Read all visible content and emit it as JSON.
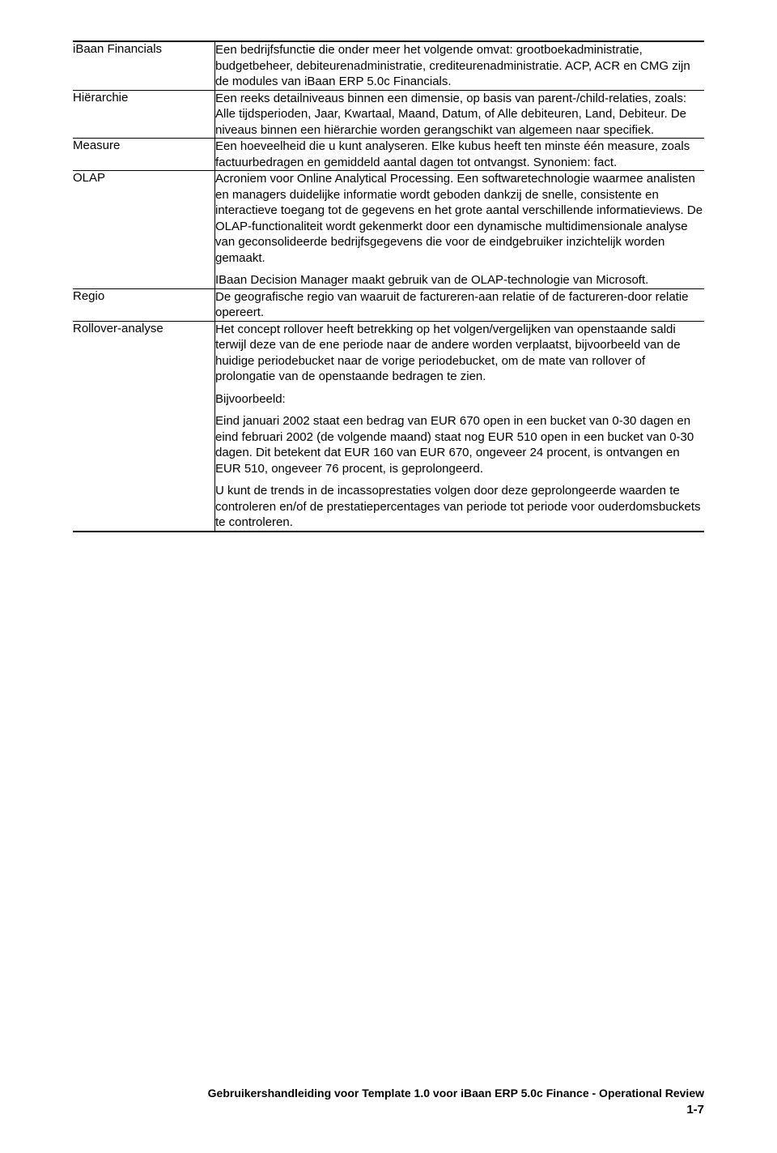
{
  "glossary": [
    {
      "term": "iBaan Financials",
      "paragraphs": [
        "Een bedrijfsfunctie die onder meer het volgende omvat: grootboekadministratie, budgetbeheer, debiteurenadministratie, crediteurenadministratie. ACP, ACR en CMG zijn de modules van iBaan ERP 5.0c Financials."
      ]
    },
    {
      "term": "Hiërarchie",
      "paragraphs": [
        "Een reeks detailniveaus binnen een dimensie, op basis van parent-/child-relaties, zoals: Alle tijdsperioden, Jaar, Kwartaal, Maand, Datum, of Alle debiteuren, Land, Debiteur. De niveaus binnen een hiërarchie worden gerangschikt van algemeen naar specifiek."
      ]
    },
    {
      "term": "Measure",
      "paragraphs": [
        "Een hoeveelheid die u kunt analyseren. Elke kubus heeft ten minste één measure, zoals factuurbedragen en gemiddeld aantal dagen tot ontvangst. Synoniem: fact."
      ]
    },
    {
      "term": "OLAP",
      "paragraphs": [
        "Acroniem voor Online Analytical Processing. Een softwaretechnologie waarmee analisten en managers duidelijke informatie wordt geboden dankzij de snelle, consistente en interactieve toegang tot de gegevens en het grote aantal verschillende informatieviews. De OLAP-functionaliteit wordt gekenmerkt door een dynamische multidimensionale analyse van geconsolideerde bedrijfsgegevens die voor de eindgebruiker inzichtelijk worden gemaakt.",
        "IBaan Decision Manager maakt gebruik van de OLAP-technologie van Microsoft."
      ]
    },
    {
      "term": "Regio",
      "paragraphs": [
        "De geografische regio van waaruit de factureren-aan relatie of de factureren-door relatie opereert."
      ]
    },
    {
      "term": "Rollover-analyse",
      "paragraphs": [
        "Het concept rollover heeft betrekking op het volgen/vergelijken van openstaande saldi terwijl deze van de ene periode naar de andere worden verplaatst, bijvoorbeeld van de huidige periodebucket naar de vorige periodebucket, om de mate van rollover of prolongatie van de openstaande bedragen te zien.",
        "Bijvoorbeeld:",
        "Eind januari 2002 staat een bedrag van EUR 670 open in een bucket van 0-30 dagen en eind februari 2002 (de volgende maand) staat nog EUR 510 open in een bucket van 0-30 dagen. Dit betekent dat EUR 160 van EUR 670, ongeveer 24 procent, is ontvangen en EUR 510, ongeveer 76 procent, is geprolongeerd.",
        "U kunt de trends in de incassoprestaties volgen door deze geprolongeerde waarden te controleren en/of de prestatiepercentages van periode tot periode voor ouderdomsbuckets te controleren."
      ]
    }
  ],
  "footer": {
    "title": "Gebruikershandleiding voor Template 1.0 voor iBaan ERP 5.0c Finance - Operational Review",
    "page": "1-7"
  }
}
